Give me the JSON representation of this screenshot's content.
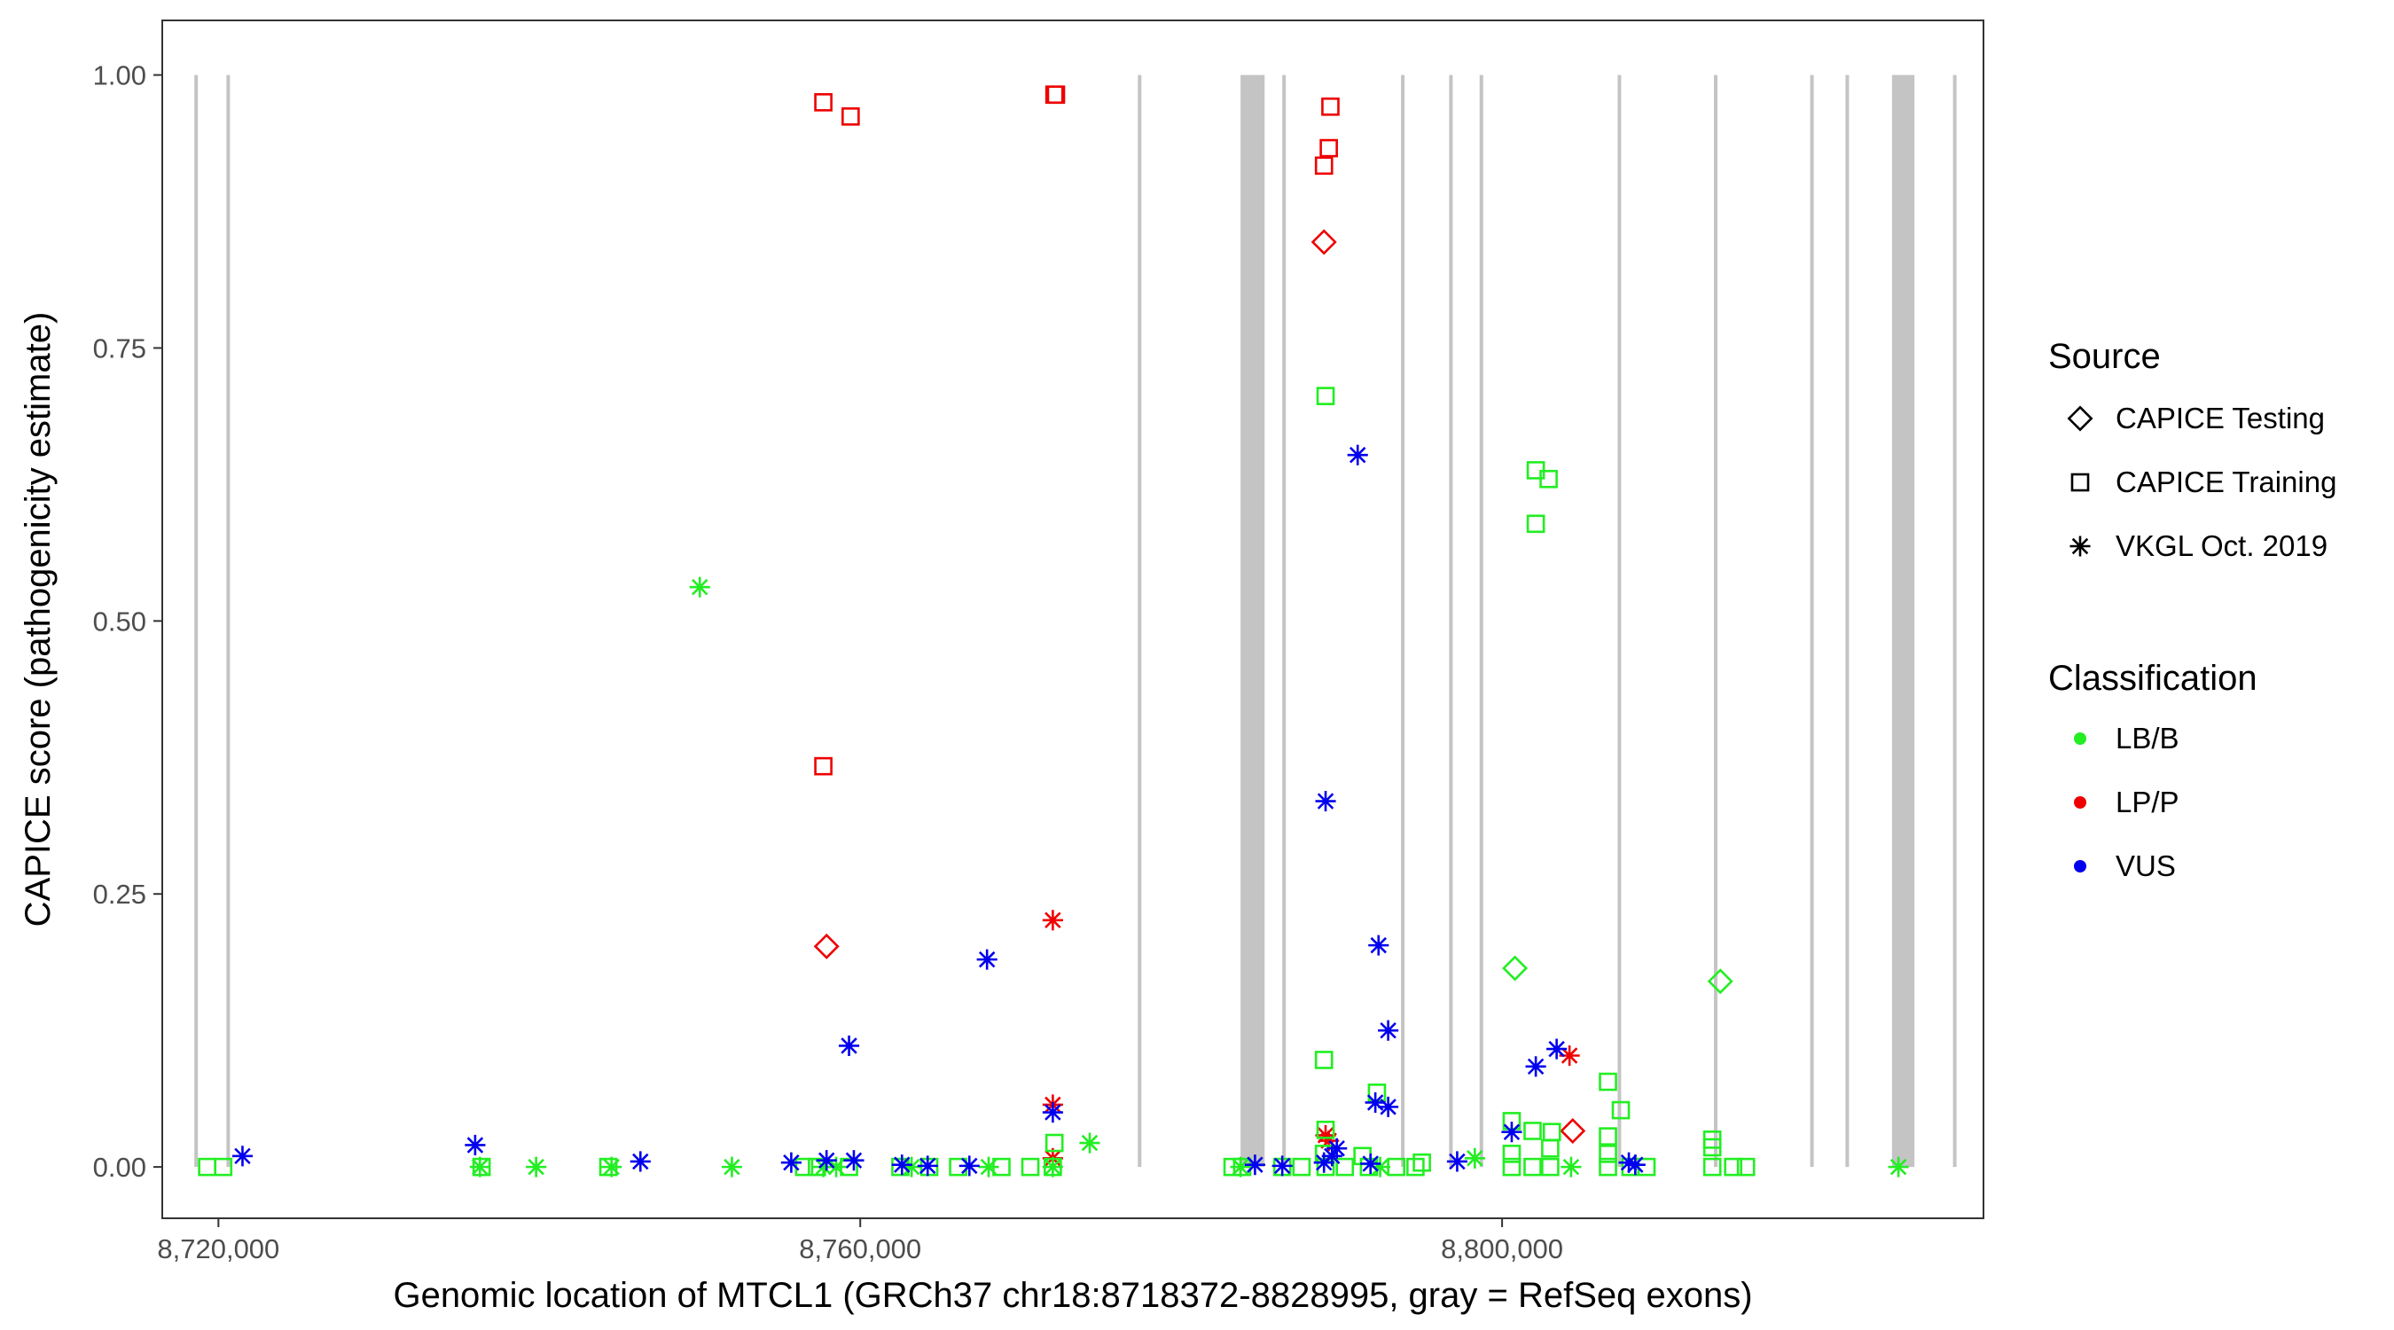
{
  "chart_data": {
    "type": "scatter",
    "xlabel": "Genomic location of MTCL1 (GRCh37 chr18:8718372-8828995, gray = RefSeq exons)",
    "ylabel": "CAPICE score (pathogenicity estimate)",
    "xlim": [
      8716500,
      8830000
    ],
    "ylim": [
      -0.047,
      1.05
    ],
    "x_ticks": [
      8720000,
      8760000,
      8800000
    ],
    "x_tick_labels": [
      "8,720,000",
      "8,760,000",
      "8,800,000"
    ],
    "y_ticks": [
      0,
      0.25,
      0.5,
      0.75,
      1.0
    ],
    "y_tick_labels": [
      "0.00",
      "0.25",
      "0.50",
      "0.75",
      "1.00"
    ],
    "grid": false,
    "legend_position": "right",
    "colors": {
      "LB/B": "#22ee22",
      "LP/P": "#ee0000",
      "VUS": "#0000ee",
      "exon": "#c4c4c4"
    },
    "legend": {
      "source_title": "Source",
      "source_items": [
        {
          "label": "CAPICE Testing",
          "shape": "diamond"
        },
        {
          "label": "CAPICE Training",
          "shape": "square"
        },
        {
          "label": "VKGL Oct. 2019",
          "shape": "star"
        }
      ],
      "class_title": "Classification",
      "class_items": [
        {
          "label": "LB/B",
          "color": "#22ee22"
        },
        {
          "label": "LP/P",
          "color": "#ee0000"
        },
        {
          "label": "VUS",
          "color": "#0000ee"
        }
      ]
    },
    "exons": [
      [
        8718500,
        8718700
      ],
      [
        8720500,
        8720700
      ],
      [
        8777300,
        8777500
      ],
      [
        8783700,
        8785200
      ],
      [
        8786300,
        8786500
      ],
      [
        8793700,
        8793900
      ],
      [
        8796700,
        8796900
      ],
      [
        8798600,
        8798800
      ],
      [
        8807200,
        8807400
      ],
      [
        8813200,
        8813400
      ],
      [
        8819200,
        8819400
      ],
      [
        8821400,
        8821600
      ],
      [
        8824300,
        8825700
      ],
      [
        8828100,
        8828300
      ]
    ],
    "series": [
      {
        "name": "CAPICE Training",
        "class": "LP/P",
        "shape": "square",
        "points": [
          [
            8757700,
            0.975
          ],
          [
            8759400,
            0.962
          ],
          [
            8772100,
            0.982
          ],
          [
            8772200,
            0.982
          ],
          [
            8789300,
            0.971
          ],
          [
            8789200,
            0.933
          ],
          [
            8788900,
            0.917
          ],
          [
            8757700,
            0.367
          ]
        ]
      },
      {
        "name": "CAPICE Testing",
        "class": "LP/P",
        "shape": "diamond",
        "points": [
          [
            8788900,
            0.847
          ],
          [
            8757900,
            0.202
          ],
          [
            8804400,
            0.033
          ]
        ]
      },
      {
        "name": "VKGL Oct. 2019",
        "class": "LP/P",
        "shape": "star",
        "points": [
          [
            8772000,
            0.226
          ],
          [
            8772000,
            0.057
          ],
          [
            8804200,
            0.102
          ],
          [
            8772000,
            0.008
          ],
          [
            8789000,
            0.029
          ],
          [
            8789200,
            0.024
          ]
        ]
      },
      {
        "name": "CAPICE Training",
        "class": "LB/B",
        "shape": "square",
        "points": [
          [
            8789000,
            0.706
          ],
          [
            8788900,
            0.098
          ],
          [
            8802100,
            0.638
          ],
          [
            8802900,
            0.63
          ],
          [
            8802100,
            0.589
          ],
          [
            8806600,
            0.078
          ],
          [
            8807400,
            0.052
          ],
          [
            8792200,
            0.068
          ],
          [
            8789000,
            0.034
          ],
          [
            8800600,
            0.042
          ],
          [
            8801900,
            0.033
          ],
          [
            8803100,
            0.032
          ],
          [
            8806600,
            0.028
          ],
          [
            8813100,
            0.025
          ],
          [
            8813100,
            0.018
          ],
          [
            8772100,
            0.022
          ],
          [
            8803000,
            0.017
          ],
          [
            8800600,
            0.012
          ],
          [
            8806600,
            0.012
          ],
          [
            8788900,
            0.012
          ],
          [
            8791300,
            0.01
          ],
          [
            8795000,
            0.004
          ],
          [
            8719300,
            0.0
          ],
          [
            8720300,
            0.0
          ],
          [
            8736400,
            0.0
          ],
          [
            8744300,
            0.0
          ],
          [
            8756500,
            0.0
          ],
          [
            8757300,
            0.0
          ],
          [
            8759300,
            0.0
          ],
          [
            8762500,
            0.0
          ],
          [
            8764300,
            0.0
          ],
          [
            8766100,
            0.0
          ],
          [
            8768800,
            0.0
          ],
          [
            8770600,
            0.0
          ],
          [
            8772000,
            0.0
          ],
          [
            8783200,
            0.0
          ],
          [
            8783800,
            0.0
          ],
          [
            8786300,
            0.0
          ],
          [
            8787500,
            0.0
          ],
          [
            8789000,
            0.0
          ],
          [
            8790200,
            0.0
          ],
          [
            8791700,
            0.0
          ],
          [
            8793400,
            0.0
          ],
          [
            8794600,
            0.0
          ],
          [
            8800600,
            0.0
          ],
          [
            8801900,
            0.0
          ],
          [
            8803000,
            0.0
          ],
          [
            8806600,
            0.0
          ],
          [
            8808000,
            0.0
          ],
          [
            8809000,
            0.0
          ],
          [
            8813100,
            0.0
          ],
          [
            8814400,
            0.0
          ],
          [
            8815200,
            0.0
          ]
        ]
      },
      {
        "name": "CAPICE Testing",
        "class": "LB/B",
        "shape": "diamond",
        "points": [
          [
            8800800,
            0.182
          ],
          [
            8813600,
            0.17
          ]
        ]
      },
      {
        "name": "VKGL Oct. 2019",
        "class": "LB/B",
        "shape": "star",
        "points": [
          [
            8750000,
            0.531
          ],
          [
            8774300,
            0.022
          ],
          [
            8798300,
            0.008
          ],
          [
            8736300,
            0.0
          ],
          [
            8739800,
            0.0
          ],
          [
            8744500,
            0.0
          ],
          [
            8752000,
            0.0
          ],
          [
            8757700,
            0.0
          ],
          [
            8758500,
            0.0
          ],
          [
            8763200,
            0.0
          ],
          [
            8768000,
            0.0
          ],
          [
            8772000,
            0.0
          ],
          [
            8783700,
            0.0
          ],
          [
            8792400,
            0.0
          ],
          [
            8804300,
            0.0
          ],
          [
            8824700,
            0.0
          ]
        ]
      },
      {
        "name": "VKGL Oct. 2019",
        "class": "VUS",
        "shape": "star",
        "points": [
          [
            8791000,
            0.652
          ],
          [
            8789000,
            0.335
          ],
          [
            8792300,
            0.203
          ],
          [
            8767900,
            0.19
          ],
          [
            8792900,
            0.125
          ],
          [
            8759300,
            0.111
          ],
          [
            8803400,
            0.108
          ],
          [
            8802100,
            0.092
          ],
          [
            8792100,
            0.059
          ],
          [
            8792900,
            0.055
          ],
          [
            8772000,
            0.05
          ],
          [
            8800600,
            0.032
          ],
          [
            8789700,
            0.017
          ],
          [
            8736000,
            0.02
          ],
          [
            8721500,
            0.01
          ],
          [
            8746300,
            0.005
          ],
          [
            8755700,
            0.004
          ],
          [
            8757900,
            0.006
          ],
          [
            8759600,
            0.006
          ],
          [
            8762600,
            0.002
          ],
          [
            8764200,
            0.001
          ],
          [
            8766800,
            0.001
          ],
          [
            8784600,
            0.002
          ],
          [
            8786300,
            0.001
          ],
          [
            8788900,
            0.004
          ],
          [
            8789400,
            0.01
          ],
          [
            8791800,
            0.003
          ],
          [
            8797200,
            0.005
          ],
          [
            8807900,
            0.004
          ],
          [
            8808300,
            0.002
          ]
        ]
      }
    ]
  }
}
